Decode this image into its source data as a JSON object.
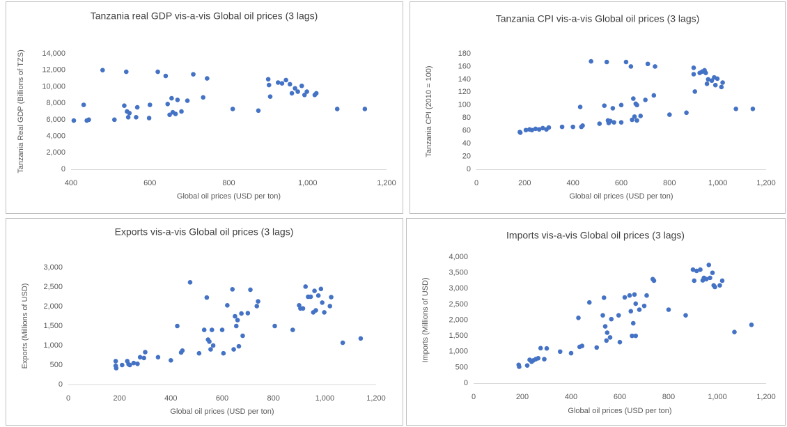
{
  "chart_data": [
    {
      "type": "scatter",
      "title": "Tanzania real GDP vis-a-vis Global oil prices (3 lags)",
      "x_label": "Global oil prices (USD per ton)",
      "y_label": "Tanzania Real GDP (Billions of TZS)",
      "color": "#4472c4",
      "x": [
        407,
        432,
        440,
        445,
        480,
        510,
        535,
        540,
        542,
        545,
        548,
        565,
        568,
        598,
        600,
        620,
        640,
        645,
        650,
        655,
        658,
        665,
        670,
        680,
        695,
        710,
        735,
        745,
        810,
        875,
        900,
        902,
        905,
        925,
        935,
        945,
        955,
        960,
        968,
        975,
        985,
        992,
        998,
        1018,
        1022,
        1075,
        1145
      ],
      "values": [
        5900,
        7800,
        5900,
        6000,
        12000,
        6000,
        7700,
        11800,
        7000,
        6300,
        6800,
        6300,
        7500,
        6200,
        7800,
        11800,
        11300,
        7900,
        6600,
        8600,
        6900,
        6700,
        8400,
        7000,
        8300,
        11500,
        8700,
        11000,
        7300,
        7100,
        10900,
        10200,
        8800,
        10500,
        10400,
        10800,
        10300,
        9200,
        9800,
        9400,
        10100,
        9000,
        9400,
        9000,
        9200,
        7300,
        7300
      ],
      "xlim": [
        400,
        1200
      ],
      "xticks": [
        400,
        600,
        800,
        {
          "value": 1000,
          "label": "1,000"
        },
        {
          "value": 1200,
          "label": "1,200"
        }
      ],
      "ylim": [
        0,
        14000
      ],
      "yticks": [
        0,
        {
          "value": 2000,
          "label": "2,000"
        },
        {
          "value": 4000,
          "label": "4,000"
        },
        {
          "value": 6000,
          "label": "6,000"
        },
        {
          "value": 8000,
          "label": "8,000"
        },
        {
          "value": 10000,
          "label": "10,000"
        },
        {
          "value": 12000,
          "label": "12,000"
        },
        {
          "value": 14000,
          "label": "14,000"
        }
      ]
    },
    {
      "type": "scatter",
      "title": "Tanzania CPI vis-a-vis Global oil prices (3 lags)",
      "x_label": "Global oil prices (USD per ton)",
      "y_label": "Tanzania CPI (2010 = 100)",
      "color": "#4472c4",
      "x": [
        180,
        182,
        205,
        220,
        230,
        245,
        260,
        275,
        290,
        300,
        355,
        400,
        430,
        435,
        440,
        475,
        510,
        530,
        540,
        545,
        548,
        555,
        565,
        570,
        600,
        600,
        620,
        640,
        645,
        650,
        655,
        660,
        665,
        665,
        680,
        700,
        710,
        735,
        740,
        800,
        870,
        900,
        900,
        905,
        925,
        935,
        945,
        950,
        955,
        960,
        975,
        985,
        990,
        998,
        1015,
        1020,
        1075,
        1145
      ],
      "values": [
        58,
        57,
        61,
        62,
        61,
        63,
        62,
        64,
        62,
        65,
        66,
        66,
        97,
        66,
        68,
        168,
        71,
        99,
        167,
        76,
        72,
        75,
        95,
        73,
        100,
        73,
        167,
        160,
        77,
        110,
        82,
        102,
        100,
        76,
        83,
        108,
        164,
        115,
        160,
        85,
        88,
        158,
        148,
        121,
        150,
        152,
        154,
        150,
        133,
        140,
        138,
        143,
        131,
        141,
        128,
        135,
        94,
        94
      ],
      "xlim": [
        0,
        1200
      ],
      "xticks": [
        0,
        200,
        400,
        600,
        800,
        {
          "value": 1000,
          "label": "1,000"
        },
        {
          "value": 1200,
          "label": "1,200"
        }
      ],
      "ylim": [
        0,
        180
      ],
      "yticks": [
        0,
        20,
        40,
        60,
        80,
        100,
        120,
        140,
        160,
        180
      ]
    },
    {
      "type": "scatter",
      "title": "Exports vis-a-vis Global oil prices (3 lags)",
      "x_label": "Global oil prices (USD per ton)",
      "y_label": "Exports (Millions of USD)",
      "color": "#4472c4",
      "x": [
        185,
        185,
        187,
        210,
        230,
        235,
        240,
        255,
        270,
        280,
        295,
        300,
        350,
        400,
        425,
        440,
        445,
        475,
        510,
        530,
        540,
        545,
        550,
        555,
        560,
        565,
        600,
        605,
        620,
        640,
        645,
        650,
        655,
        660,
        665,
        675,
        680,
        700,
        710,
        735,
        740,
        805,
        875,
        900,
        905,
        915,
        925,
        935,
        945,
        955,
        960,
        965,
        975,
        985,
        990,
        998,
        1020,
        1025,
        1070,
        1140
      ],
      "values": [
        600,
        480,
        420,
        500,
        600,
        520,
        500,
        550,
        530,
        700,
        680,
        830,
        700,
        620,
        1500,
        820,
        870,
        2620,
        800,
        1400,
        2230,
        1150,
        1100,
        900,
        1400,
        1000,
        1400,
        800,
        2030,
        2440,
        900,
        1750,
        1500,
        1650,
        980,
        1820,
        1250,
        1830,
        2430,
        2010,
        2130,
        1500,
        1400,
        2030,
        1950,
        1950,
        2510,
        2250,
        2250,
        1850,
        2400,
        1900,
        2280,
        2450,
        2100,
        1850,
        2010,
        2240,
        1070,
        1180
      ],
      "xlim": [
        0,
        1200
      ],
      "xticks": [
        0,
        200,
        400,
        600,
        800,
        {
          "value": 1000,
          "label": "1,000"
        },
        {
          "value": 1200,
          "label": "1,200"
        }
      ],
      "ylim": [
        0,
        3000
      ],
      "yticks": [
        0,
        500,
        {
          "value": 1000,
          "label": "1,000"
        },
        {
          "value": 1500,
          "label": "1,500"
        },
        {
          "value": 2000,
          "label": "2,000"
        },
        {
          "value": 2500,
          "label": "2,500"
        },
        {
          "value": 3000,
          "label": "3,000"
        }
      ]
    },
    {
      "type": "scatter",
      "title": "Imports vis-a-vis Global oil prices (3 lags)",
      "x_label": "Global oil prices (USD per ton)",
      "y_label": "Imports (Millions of USD)",
      "color": "#4472c4",
      "x": [
        185,
        187,
        220,
        230,
        238,
        245,
        255,
        265,
        275,
        290,
        300,
        355,
        400,
        430,
        435,
        445,
        475,
        505,
        530,
        535,
        540,
        545,
        548,
        560,
        565,
        595,
        600,
        620,
        640,
        645,
        650,
        655,
        660,
        665,
        665,
        680,
        700,
        710,
        735,
        740,
        800,
        870,
        900,
        905,
        915,
        930,
        940,
        945,
        955,
        965,
        970,
        980,
        985,
        990,
        1010,
        1020,
        1070,
        1140
      ],
      "values": [
        580,
        520,
        560,
        740,
        680,
        720,
        760,
        790,
        1110,
        760,
        1100,
        1000,
        950,
        2070,
        1150,
        1180,
        2560,
        1130,
        2150,
        2710,
        1800,
        1350,
        1600,
        1450,
        2030,
        2150,
        1300,
        2720,
        2780,
        2280,
        1500,
        1900,
        2810,
        1500,
        2520,
        2330,
        2450,
        2780,
        3300,
        3250,
        2330,
        2150,
        3600,
        3250,
        3560,
        3600,
        3260,
        3340,
        3300,
        3750,
        3340,
        3500,
        3100,
        3050,
        3100,
        3250,
        1620,
        1850
      ],
      "xlim": [
        0,
        1200
      ],
      "xticks": [
        0,
        200,
        400,
        600,
        800,
        {
          "value": 1000,
          "label": "1,000"
        },
        {
          "value": 1200,
          "label": "1,200"
        }
      ],
      "ylim": [
        0,
        4000
      ],
      "yticks": [
        0,
        500,
        {
          "value": 1000,
          "label": "1,000"
        },
        {
          "value": 1500,
          "label": "1,500"
        },
        {
          "value": 2000,
          "label": "2,000"
        },
        {
          "value": 2500,
          "label": "2,500"
        },
        {
          "value": 3000,
          "label": "3,000"
        },
        {
          "value": 3500,
          "label": "3,500"
        },
        {
          "value": 4000,
          "label": "4,000"
        }
      ]
    }
  ]
}
